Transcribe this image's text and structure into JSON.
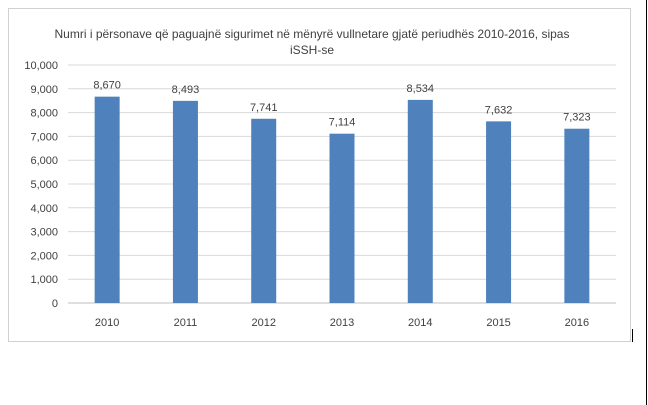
{
  "chart_data": {
    "type": "bar",
    "title": "Numri i përsonave që paguajnë sigurimet në mënyrë vullnetare gjatë periudhës 2010-2016, sipas iSSH-se",
    "title_lines": [
      "Numri i përsonave që paguajnë sigurimet në mënyrë vullnetare gjatë periudhës 2010-2016, sipas",
      "iSSH-se"
    ],
    "categories": [
      "2010",
      "2011",
      "2012",
      "2013",
      "2014",
      "2015",
      "2016"
    ],
    "values": [
      8670,
      8493,
      7741,
      7114,
      8534,
      7632,
      7323
    ],
    "data_labels": [
      "8,670",
      "8,493",
      "7,741",
      "7,114",
      "8,534",
      "7,632",
      "7,323"
    ],
    "yticks": [
      "0",
      "1,000",
      "2,000",
      "3,000",
      "4,000",
      "5,000",
      "6,000",
      "7,000",
      "8,000",
      "9,000",
      "10,000"
    ],
    "ylim": [
      0,
      10000
    ],
    "xlabel": "",
    "ylabel": "",
    "grid": true,
    "legend": "none",
    "bar_color": "#4f81bd",
    "grid_color": "#d9d9d9",
    "text_color": "#404040"
  }
}
